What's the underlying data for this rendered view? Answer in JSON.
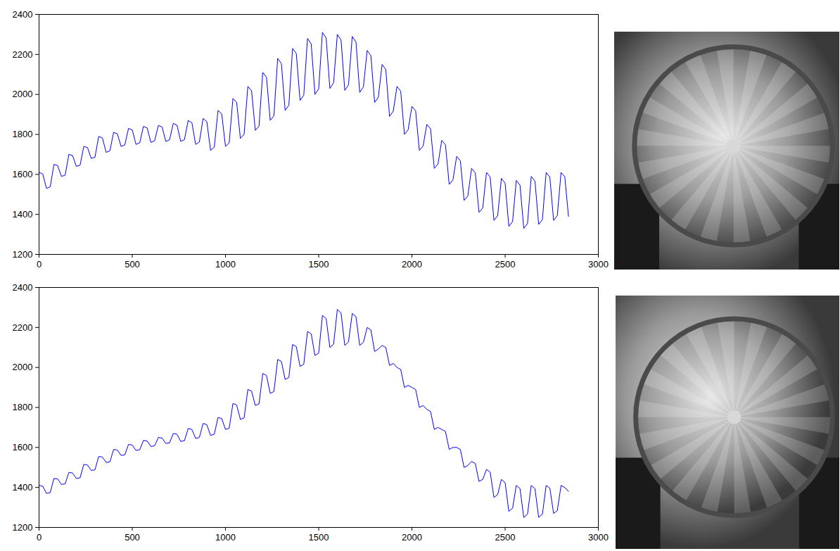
{
  "chart_data": [
    {
      "type": "line",
      "x": [
        0,
        20,
        40,
        60,
        80,
        100,
        120,
        140,
        160,
        180,
        200,
        220,
        240,
        260,
        280,
        300,
        320,
        340,
        360,
        380,
        400,
        420,
        440,
        460,
        480,
        500,
        520,
        540,
        560,
        580,
        600,
        620,
        640,
        660,
        680,
        700,
        720,
        740,
        760,
        780,
        800,
        820,
        840,
        860,
        880,
        900,
        920,
        940,
        960,
        980,
        1000,
        1020,
        1040,
        1060,
        1080,
        1100,
        1120,
        1140,
        1160,
        1180,
        1200,
        1220,
        1240,
        1260,
        1280,
        1300,
        1320,
        1340,
        1360,
        1380,
        1400,
        1420,
        1440,
        1460,
        1480,
        1500,
        1520,
        1540,
        1560,
        1580,
        1600,
        1620,
        1640,
        1660,
        1680,
        1700,
        1720,
        1740,
        1760,
        1780,
        1800,
        1820,
        1840,
        1860,
        1880,
        1900,
        1920,
        1940,
        1960,
        1980,
        2000,
        2020,
        2040,
        2060,
        2080,
        2100,
        2120,
        2140,
        2160,
        2180,
        2200,
        2220,
        2240,
        2260,
        2280,
        2300,
        2320,
        2340,
        2360,
        2380,
        2400,
        2420,
        2440,
        2460,
        2480,
        2500,
        2520,
        2540,
        2560,
        2580,
        2600,
        2620,
        2640,
        2660,
        2680,
        2700,
        2720,
        2740,
        2760,
        2780,
        2800,
        2820,
        2840
      ],
      "series": [
        {
          "color": "#0000ff",
          "values": [
            1610,
            1602,
            1530,
            1538,
            1650,
            1644,
            1590,
            1596,
            1700,
            1694,
            1640,
            1646,
            1740,
            1734,
            1680,
            1686,
            1790,
            1782,
            1710,
            1718,
            1810,
            1803,
            1740,
            1747,
            1830,
            1822,
            1750,
            1758,
            1840,
            1832,
            1760,
            1768,
            1845,
            1837,
            1765,
            1773,
            1855,
            1846,
            1765,
            1774,
            1870,
            1858,
            1750,
            1762,
            1880,
            1864,
            1720,
            1736,
            1920,
            1902,
            1740,
            1758,
            1980,
            1960,
            1780,
            1800,
            2040,
            2018,
            1820,
            1842,
            2110,
            2086,
            1870,
            1894,
            2180,
            2154,
            1920,
            1946,
            2230,
            2204,
            1970,
            1996,
            2280,
            2252,
            2000,
            2028,
            2310,
            2282,
            2030,
            2058,
            2300,
            2272,
            2020,
            2048,
            2290,
            2262,
            2010,
            2038,
            2220,
            2194,
            1960,
            1986,
            2150,
            2124,
            1890,
            1916,
            2040,
            2016,
            1800,
            1824,
            1940,
            1918,
            1720,
            1742,
            1850,
            1828,
            1630,
            1652,
            1770,
            1748,
            1550,
            1572,
            1690,
            1668,
            1470,
            1492,
            1630,
            1608,
            1410,
            1432,
            1610,
            1586,
            1370,
            1394,
            1580,
            1556,
            1340,
            1364,
            1570,
            1546,
            1330,
            1354,
            1590,
            1566,
            1350,
            1374,
            1610,
            1586,
            1370,
            1394,
            1610,
            1588,
            1390
          ]
        }
      ],
      "xlim": [
        0,
        3000
      ],
      "ylim": [
        1200,
        2400
      ],
      "xticks": [
        0,
        500,
        1000,
        1500,
        2000,
        2500,
        3000
      ],
      "yticks": [
        1200,
        1400,
        1600,
        1800,
        2000,
        2200,
        2400
      ],
      "grid": false
    },
    {
      "type": "line",
      "x": [
        0,
        20,
        40,
        60,
        80,
        100,
        120,
        140,
        160,
        180,
        200,
        220,
        240,
        260,
        280,
        300,
        320,
        340,
        360,
        380,
        400,
        420,
        440,
        460,
        480,
        500,
        520,
        540,
        560,
        580,
        600,
        620,
        640,
        660,
        680,
        700,
        720,
        740,
        760,
        780,
        800,
        820,
        840,
        860,
        880,
        900,
        920,
        940,
        960,
        980,
        1000,
        1020,
        1040,
        1060,
        1080,
        1100,
        1120,
        1140,
        1160,
        1180,
        1200,
        1220,
        1240,
        1260,
        1280,
        1300,
        1320,
        1340,
        1360,
        1380,
        1400,
        1420,
        1440,
        1460,
        1480,
        1500,
        1520,
        1540,
        1560,
        1580,
        1600,
        1620,
        1640,
        1660,
        1680,
        1700,
        1720,
        1740,
        1760,
        1780,
        1800,
        1820,
        1840,
        1860,
        1880,
        1900,
        1920,
        1940,
        1960,
        1980,
        2000,
        2020,
        2040,
        2060,
        2080,
        2100,
        2120,
        2140,
        2160,
        2180,
        2200,
        2220,
        2240,
        2260,
        2280,
        2300,
        2320,
        2340,
        2360,
        2380,
        2400,
        2420,
        2440,
        2460,
        2480,
        2500,
        2520,
        2540,
        2560,
        2580,
        2600,
        2620,
        2640,
        2660,
        2680,
        2700,
        2720,
        2740,
        2760,
        2780,
        2800,
        2820,
        2840
      ],
      "series": [
        {
          "color": "#0000ff",
          "values": [
            1410,
            1406,
            1370,
            1374,
            1445,
            1442,
            1415,
            1418,
            1475,
            1472,
            1445,
            1448,
            1515,
            1512,
            1485,
            1488,
            1555,
            1552,
            1525,
            1528,
            1590,
            1587,
            1560,
            1563,
            1615,
            1612,
            1585,
            1588,
            1635,
            1632,
            1605,
            1608,
            1650,
            1647,
            1620,
            1623,
            1670,
            1666,
            1630,
            1634,
            1695,
            1690,
            1645,
            1650,
            1720,
            1714,
            1660,
            1666,
            1750,
            1744,
            1690,
            1696,
            1820,
            1812,
            1740,
            1748,
            1890,
            1882,
            1810,
            1818,
            1970,
            1960,
            1870,
            1880,
            2040,
            2030,
            1940,
            1950,
            2115,
            2104,
            2005,
            2016,
            2180,
            2168,
            2060,
            2072,
            2260,
            2244,
            2100,
            2116,
            2290,
            2272,
            2110,
            2128,
            2270,
            2254,
            2110,
            2126,
            2200,
            2188,
            2080,
            2092,
            2110,
            2100,
            2010,
            2020,
            2000,
            1990,
            1900,
            1910,
            1900,
            1890,
            1800,
            1810,
            1790,
            1780,
            1690,
            1700,
            1690,
            1680,
            1590,
            1600,
            1600,
            1590,
            1500,
            1510,
            1530,
            1520,
            1430,
            1440,
            1490,
            1476,
            1350,
            1364,
            1440,
            1424,
            1280,
            1296,
            1410,
            1394,
            1250,
            1266,
            1410,
            1394,
            1250,
            1266,
            1410,
            1396,
            1270,
            1284,
            1410,
            1400,
            1380
          ]
        }
      ],
      "xlim": [
        0,
        3000
      ],
      "ylim": [
        1200,
        2400
      ],
      "xticks": [
        0,
        500,
        1000,
        1500,
        2000,
        2500,
        3000
      ],
      "yticks": [
        1200,
        1400,
        1600,
        1800,
        2000,
        2200,
        2400
      ],
      "grid": false
    }
  ]
}
